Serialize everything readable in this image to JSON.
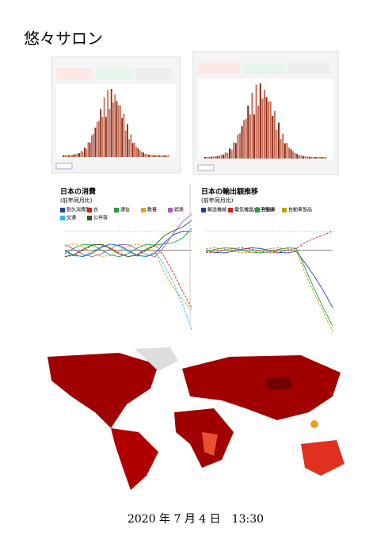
{
  "header": {
    "title": "悠々サロン"
  },
  "charts": [
    {
      "title": "日本の消費",
      "subtitle": "(前年同月比)",
      "legend": [
        "耐久消費財",
        "衣",
        "通信",
        "教養",
        "娯楽",
        "交通",
        "公共等"
      ]
    },
    {
      "title": "日本の輸出額推移",
      "subtitle": "(前年同月比)",
      "legend": [
        "輸送機械",
        "電気機器/電子部品",
        "自動車",
        "自動車部品"
      ]
    }
  ],
  "footer": {
    "date": "2020 年 7 月 4 日　13:30"
  }
}
